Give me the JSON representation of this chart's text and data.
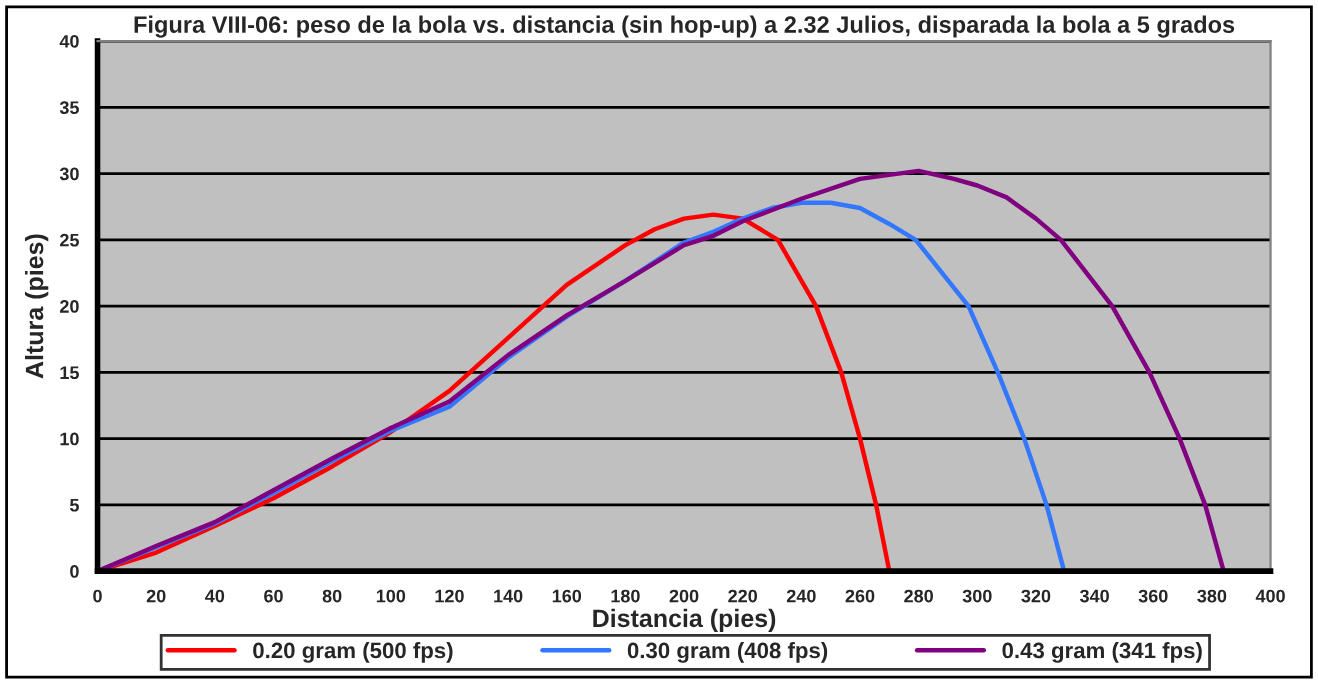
{
  "chart_data": {
    "type": "line",
    "title": "Figura VIII-06: peso de la bola vs. distancia (sin hop-up) a 2.32 Julios, disparada la bola a 5 grados",
    "xlabel": "Distancia (pies)",
    "ylabel": "Altura (pies)",
    "xlim": [
      0,
      400
    ],
    "xticks": [
      0,
      20,
      40,
      60,
      80,
      100,
      120,
      140,
      160,
      180,
      200,
      220,
      240,
      260,
      280,
      300,
      320,
      340,
      360,
      380,
      400
    ],
    "ylim": [
      0,
      40
    ],
    "yticks": [
      0,
      5,
      10,
      15,
      20,
      25,
      30,
      35,
      40
    ],
    "grid": "y",
    "legend": "bottom",
    "marker": "none",
    "line_style": "solid",
    "series": [
      {
        "name": "0.20 gram (500 fps)",
        "color": "#ff0000",
        "x": [
          0,
          20,
          40,
          60,
          80,
          100,
          120,
          140,
          160,
          180,
          190,
          200,
          210,
          220,
          232,
          245,
          253.6,
          260,
          265.5,
          270
        ],
        "values": [
          0,
          1.4,
          3.4,
          5.5,
          7.9,
          10.5,
          13.6,
          17.6,
          21.6,
          24.6,
          25.8,
          26.6,
          26.9,
          26.6,
          25,
          20,
          15,
          10,
          5,
          0
        ]
      },
      {
        "name": "0.30 gram (408 fps)",
        "color": "#3377ff",
        "x": [
          0,
          20,
          40,
          60,
          80,
          100,
          120,
          140,
          160,
          180,
          200,
          210,
          220,
          230,
          240,
          250,
          260,
          270,
          279,
          297,
          307,
          316,
          323.6,
          329.6
        ],
        "values": [
          0,
          1.8,
          3.6,
          5.9,
          8.3,
          10.6,
          12.4,
          16.1,
          19.2,
          21.9,
          24.8,
          25.6,
          26.6,
          27.4,
          27.8,
          27.8,
          27.4,
          26.2,
          25,
          20,
          15,
          10,
          5,
          0
        ]
      },
      {
        "name": "0.43 gram (341 fps)",
        "color": "#800080",
        "x": [
          0,
          20,
          40,
          60,
          80,
          100,
          120,
          140,
          160,
          180,
          200,
          210,
          220,
          240,
          260,
          280,
          292,
          300,
          310,
          320,
          328.5,
          346,
          358.7,
          369,
          377.7,
          384
        ],
        "values": [
          0,
          1.9,
          3.7,
          6.1,
          8.5,
          10.8,
          12.8,
          16.3,
          19.3,
          21.9,
          24.6,
          25.3,
          26.4,
          28.1,
          29.6,
          30.2,
          29.6,
          29.1,
          28.2,
          26.6,
          25,
          20,
          15,
          10,
          5,
          0
        ]
      }
    ]
  }
}
